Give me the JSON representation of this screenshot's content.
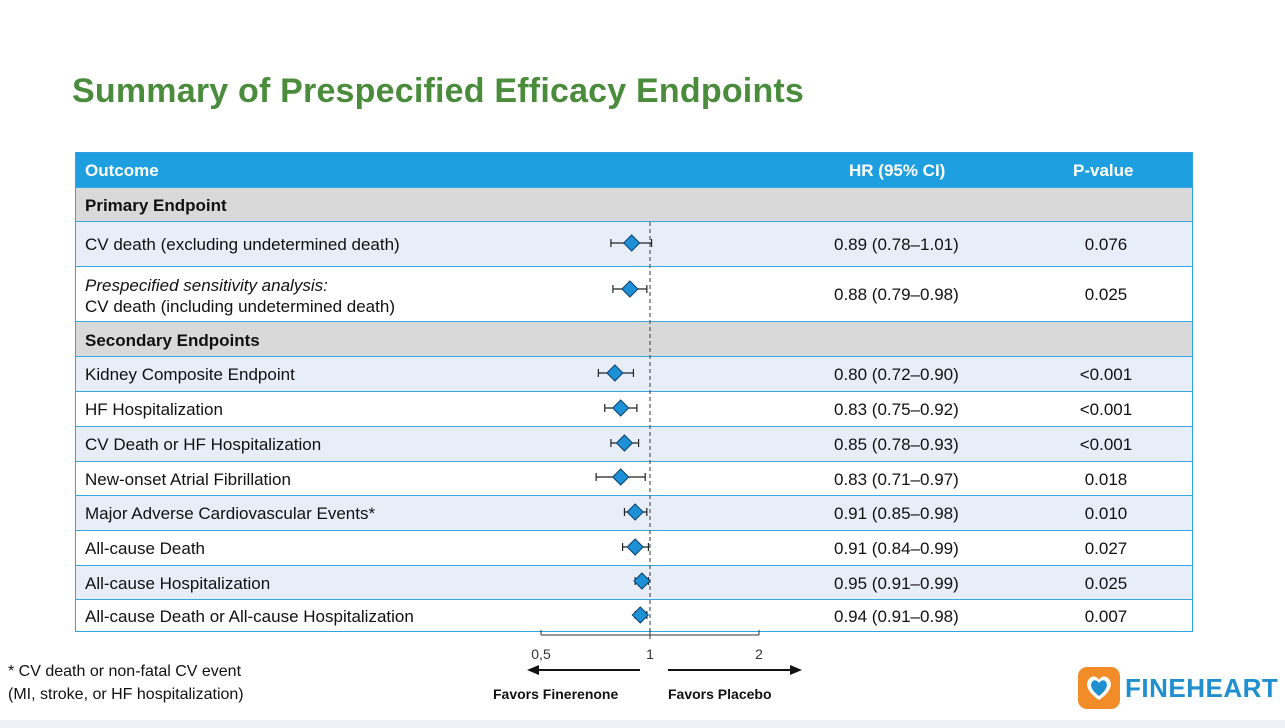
{
  "title": "Summary of Prespecified Efficacy Endpoints",
  "table": {
    "header": {
      "outcome": "Outcome",
      "hr": "HR (95% CI)",
      "pvalue": "P-value"
    },
    "sections": [
      {
        "label": "Primary Endpoint"
      },
      {
        "label": "Secondary Endpoints"
      }
    ],
    "rows": [
      {
        "label": "CV death (excluding undetermined death)",
        "hr_text": "0.89 (0.78–1.01)",
        "p": "0.076"
      },
      {
        "label_italic": "Prespecified sensitivity analysis:",
        "label": "CV death (including undetermined death)",
        "hr_text": "0.88 (0.79–0.98)",
        "p": "0.025"
      },
      {
        "label": "Kidney Composite Endpoint",
        "hr_text": "0.80 (0.72–0.90)",
        "p": "<0.001"
      },
      {
        "label": "HF Hospitalization",
        "hr_text": "0.83 (0.75–0.92)",
        "p": "<0.001"
      },
      {
        "label": "CV Death or HF Hospitalization",
        "hr_text": "0.85 (0.78–0.93)",
        "p": "<0.001"
      },
      {
        "label": "New-onset Atrial Fibrillation",
        "hr_text": "0.83 (0.71–0.97)",
        "p": "0.018"
      },
      {
        "label": "Major Adverse Cardiovascular Events*",
        "hr_text": "0.91 (0.85–0.98)",
        "p": "0.010"
      },
      {
        "label": "All-cause Death",
        "hr_text": "0.91 (0.84–0.99)",
        "p": "0.027"
      },
      {
        "label": "All-cause Hospitalization",
        "hr_text": "0.95 (0.91–0.99)",
        "p": "0.025"
      },
      {
        "label": "All-cause Death or All-cause Hospitalization",
        "hr_text": "0.94 (0.91–0.98)",
        "p": "0.007"
      }
    ]
  },
  "chart_data": {
    "type": "forest",
    "x_scale": "log",
    "x_ticks": [
      {
        "value": 0.5,
        "label": "0,5"
      },
      {
        "value": 1,
        "label": "1"
      },
      {
        "value": 2,
        "label": "2"
      }
    ],
    "reference_line": 1,
    "left_arrow_label": "Favors Finerenone",
    "right_arrow_label": "Favors Placebo",
    "points": [
      {
        "hr": 0.89,
        "lo": 0.78,
        "hi": 1.01
      },
      {
        "hr": 0.88,
        "lo": 0.79,
        "hi": 0.98
      },
      {
        "hr": 0.8,
        "lo": 0.72,
        "hi": 0.9
      },
      {
        "hr": 0.83,
        "lo": 0.75,
        "hi": 0.92
      },
      {
        "hr": 0.85,
        "lo": 0.78,
        "hi": 0.93
      },
      {
        "hr": 0.83,
        "lo": 0.71,
        "hi": 0.97
      },
      {
        "hr": 0.91,
        "lo": 0.85,
        "hi": 0.98
      },
      {
        "hr": 0.91,
        "lo": 0.84,
        "hi": 0.99
      },
      {
        "hr": 0.95,
        "lo": 0.91,
        "hi": 0.99
      },
      {
        "hr": 0.94,
        "lo": 0.91,
        "hi": 0.98
      }
    ],
    "colors": {
      "marker": "#1e90d6",
      "marker_edge": "#0a3f6b",
      "header": "#1ea0e0",
      "title": "#4a8c3c"
    }
  },
  "footnote": {
    "line1": "* CV death or non-fatal CV event",
    "line2": "(MI, stroke, or HF hospitalization)"
  },
  "logo": {
    "text": "FINEHEART"
  }
}
